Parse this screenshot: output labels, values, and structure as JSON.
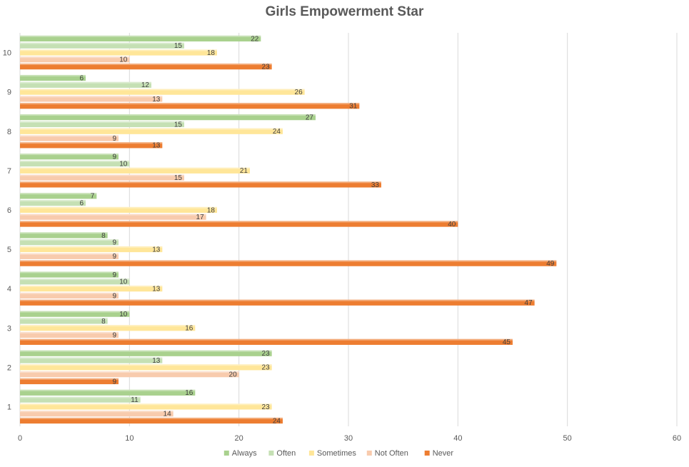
{
  "chart_data": {
    "type": "bar",
    "orientation": "horizontal",
    "title": "Girls Empowerment Star",
    "categories": [
      "1",
      "2",
      "3",
      "4",
      "5",
      "6",
      "7",
      "8",
      "9",
      "10"
    ],
    "series": [
      {
        "name": "Never",
        "color": "#ED7D31",
        "values": [
          24,
          9,
          45,
          47,
          49,
          40,
          33,
          13,
          31,
          23
        ]
      },
      {
        "name": "Not Often",
        "color": "#F8CBAD",
        "values": [
          14,
          20,
          9,
          9,
          9,
          17,
          15,
          9,
          13,
          10
        ]
      },
      {
        "name": "Sometimes",
        "color": "#FFE699",
        "values": [
          23,
          23,
          16,
          13,
          13,
          18,
          21,
          24,
          26,
          18
        ]
      },
      {
        "name": "Often",
        "color": "#C5E0B4",
        "values": [
          11,
          13,
          8,
          10,
          9,
          6,
          10,
          15,
          12,
          15
        ]
      },
      {
        "name": "Always",
        "color": "#A9D18E",
        "values": [
          16,
          23,
          10,
          9,
          8,
          7,
          9,
          27,
          6,
          22
        ]
      }
    ],
    "legend_order": [
      "Always",
      "Often",
      "Sometimes",
      "Not Often",
      "Never"
    ],
    "xlim": [
      0,
      60
    ],
    "xticks": [
      0,
      10,
      20,
      30,
      40,
      50,
      60
    ],
    "grid": true,
    "legend_position": "bottom",
    "data_labels": true
  }
}
